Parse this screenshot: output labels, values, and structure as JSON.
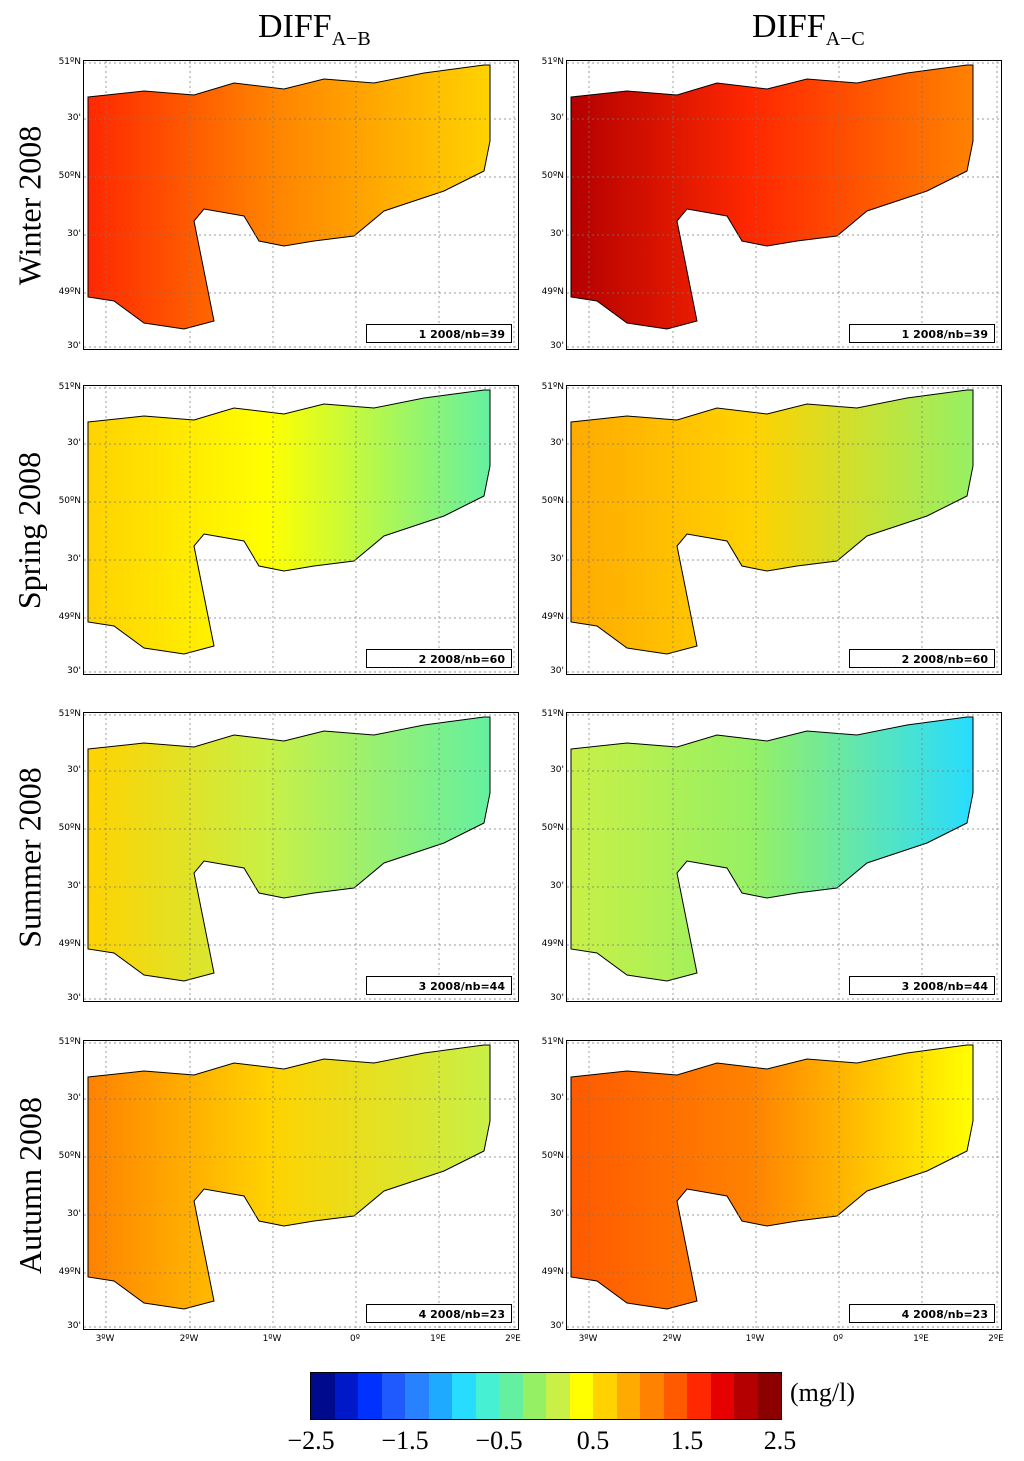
{
  "chart_data": {
    "type": "heatmap",
    "description_columns": [
      {
        "main": "DIFF",
        "sub": "A−B"
      },
      {
        "main": "DIFF",
        "sub": "A−C"
      }
    ],
    "rows": [
      {
        "label": "Winter 2008",
        "panels": [
          "1 2008/nb=39",
          "1 2008/nb=39"
        ],
        "level": [
          1.1,
          1.6
        ]
      },
      {
        "label": "Spring 2008",
        "panels": [
          "2 2008/nb=60",
          "2 2008/nb=60"
        ],
        "level": [
          0.3,
          0.5
        ]
      },
      {
        "label": "Summer 2008",
        "panels": [
          "3 2008/nb=44",
          "3 2008/nb=44"
        ],
        "level": [
          0.1,
          -0.2
        ]
      },
      {
        "label": "Autumn 2008",
        "panels": [
          "4 2008/nb=23",
          "4 2008/nb=23"
        ],
        "level": [
          0.7,
          1.0
        ]
      }
    ],
    "y_ticks": [
      "51ºN",
      "30'",
      "50ºN",
      "30'",
      "49ºN",
      "30'"
    ],
    "x_ticks": [
      "3ºW",
      "2ºW",
      "1ºW",
      "0º",
      "1ºE",
      "2ºE"
    ],
    "colorbar": {
      "unit": "(mg/l)",
      "ticks": [
        "−2.5",
        "−1.5",
        "−0.5",
        "0.5",
        "1.5",
        "2.5"
      ],
      "range": [
        -2.5,
        2.5
      ],
      "colors": [
        "#000a8c",
        "#0019c8",
        "#0032ff",
        "#1e5aff",
        "#2882ff",
        "#1eaaff",
        "#28dcff",
        "#46f0d2",
        "#64f0a0",
        "#96f064",
        "#c8f046",
        "#ffff00",
        "#ffd200",
        "#ffaa00",
        "#ff8200",
        "#ff5a00",
        "#ff2800",
        "#e60000",
        "#b40000",
        "#8c0000"
      ]
    }
  }
}
